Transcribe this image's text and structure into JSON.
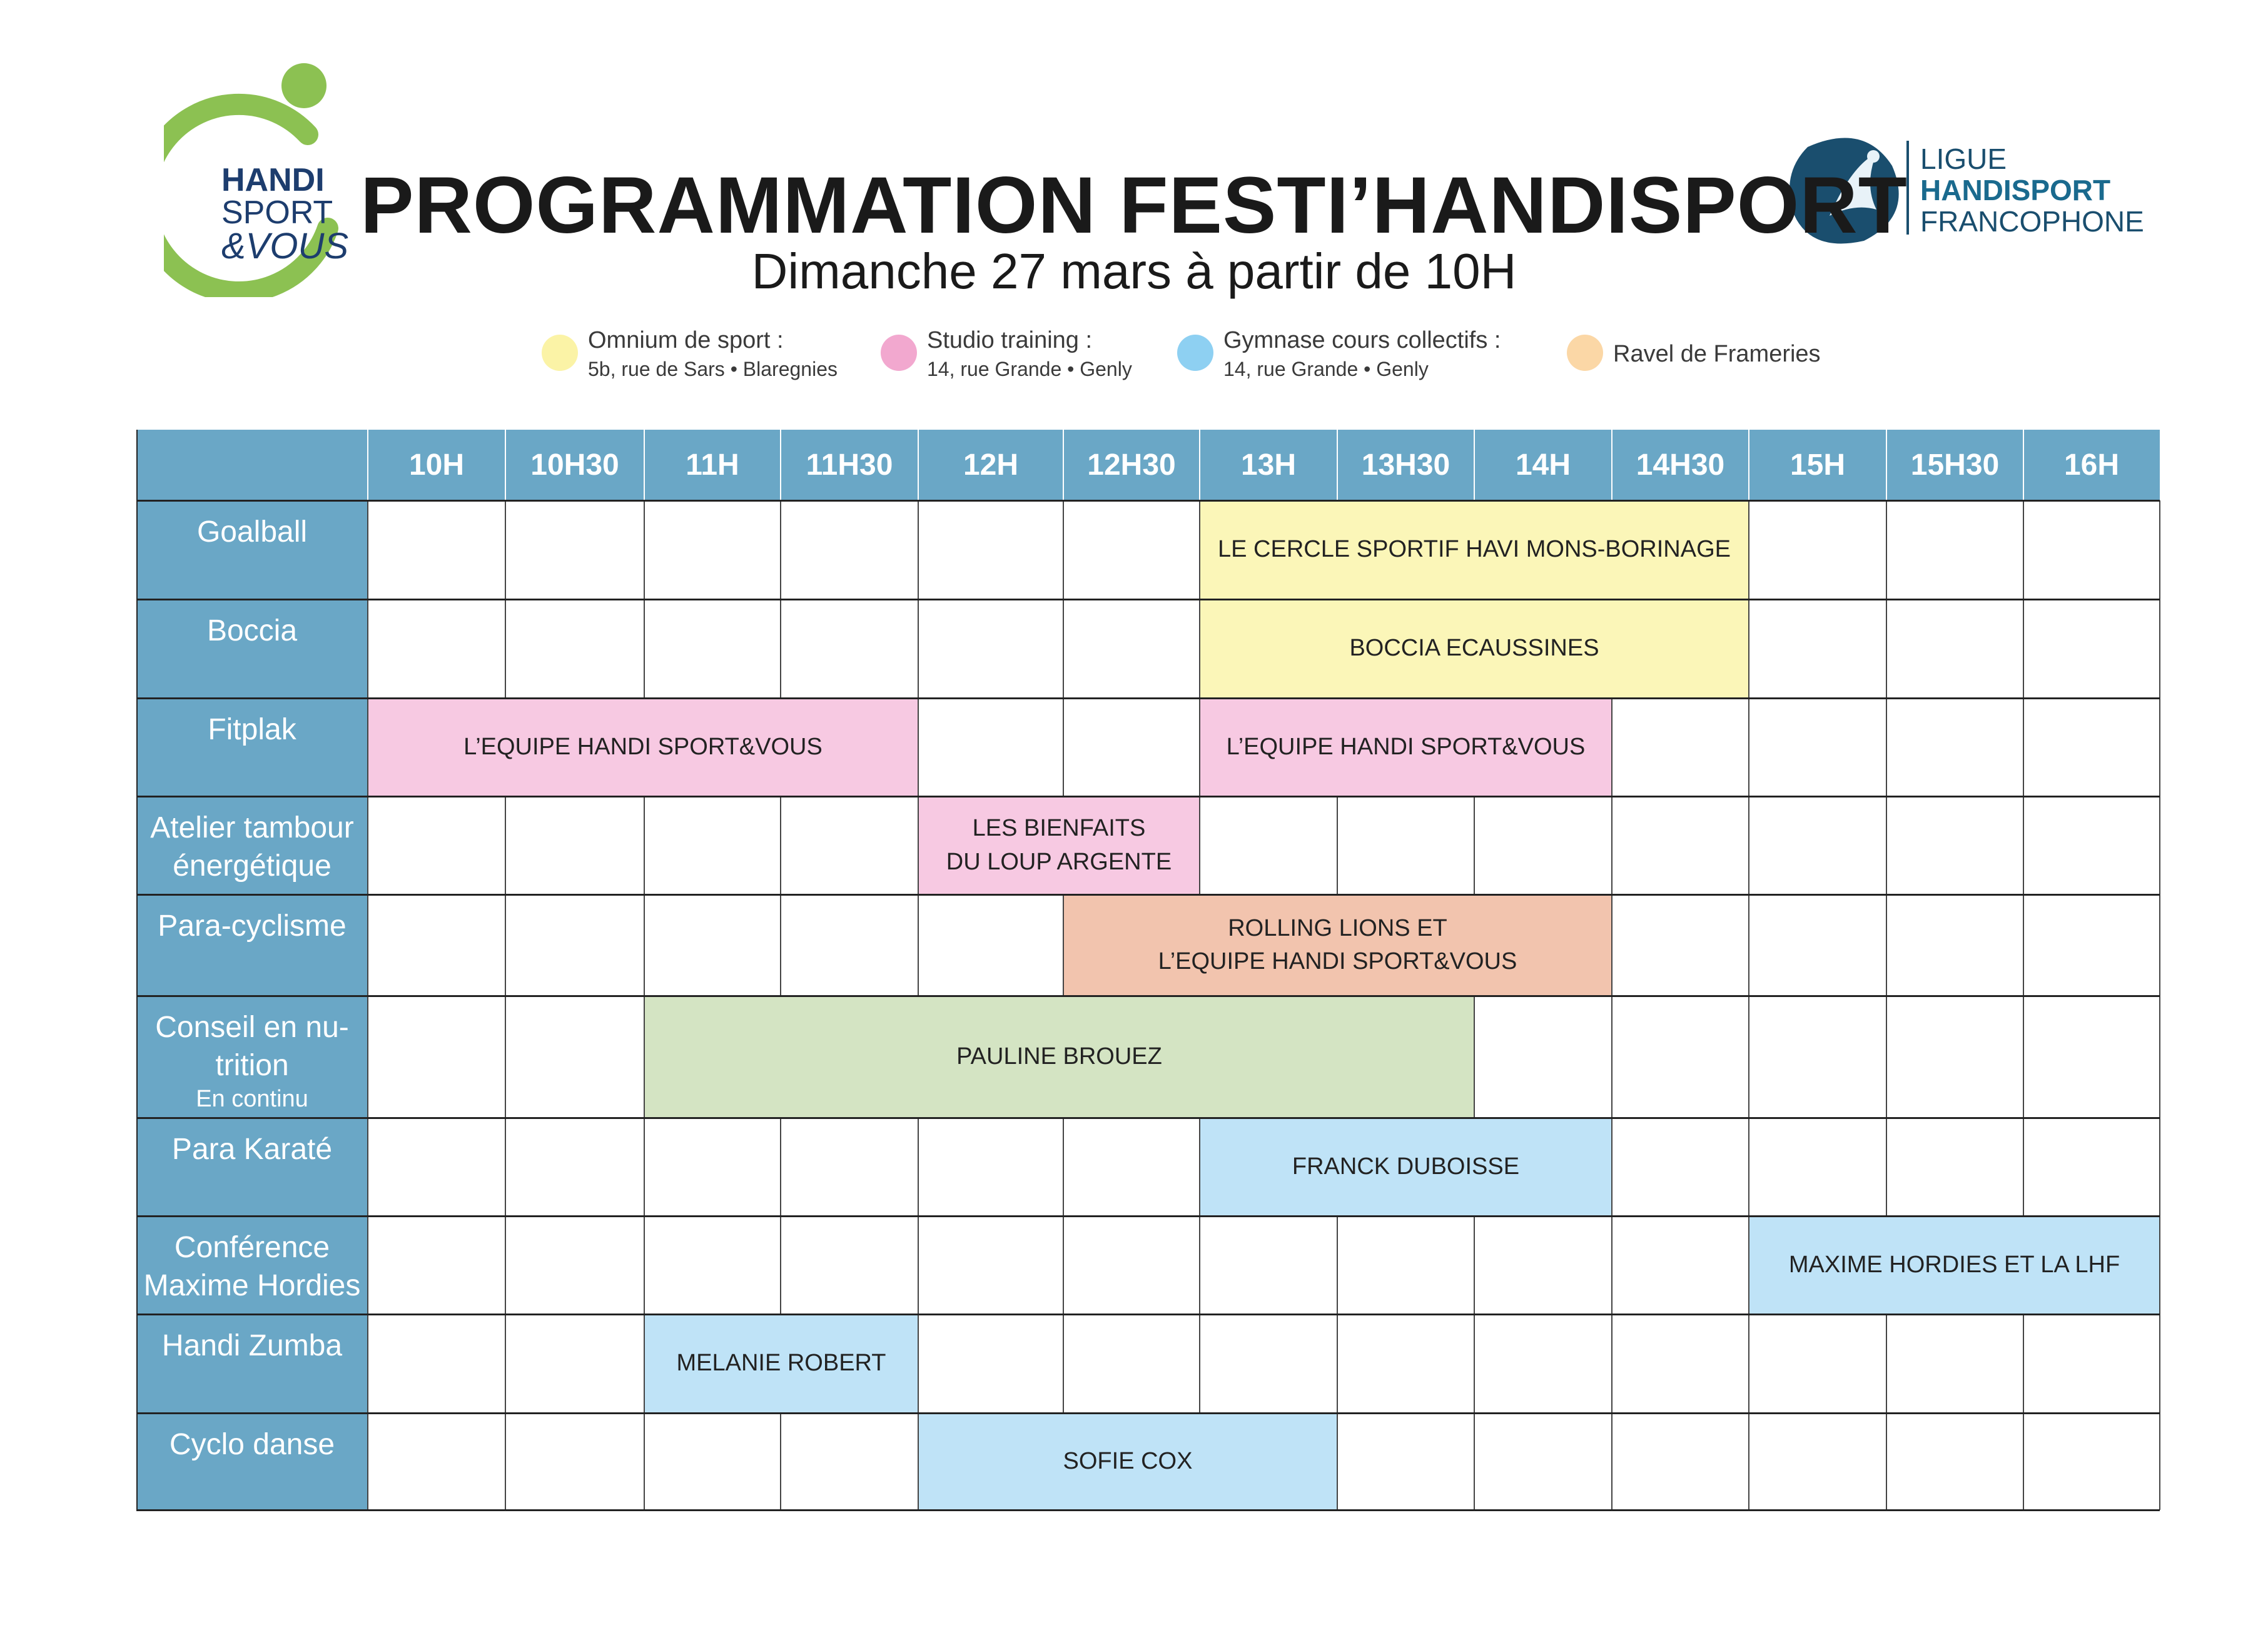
{
  "title": "PROGRAMMATION FESTI’HANDISPORT",
  "subtitle": "Dimanche 27 mars à partir de 10H",
  "logo_left": {
    "line1": "HANDI",
    "line2": "SPORT",
    "line3": "&VOUS"
  },
  "logo_right": {
    "line1": "LIGUE",
    "line2": "HANDISPORT",
    "line3": "FRANCOPHONE"
  },
  "legend": [
    {
      "name": "Omnium de sport :",
      "address": "5b, rue de Sars • Blaregnies",
      "color": "#fbf3a6"
    },
    {
      "name": "Studio training :",
      "address": "14, rue Grande • Genly",
      "color": "#f2a8cf"
    },
    {
      "name": "Gymnase cours collectifs :",
      "address": "14, rue Grande • Genly",
      "color": "#8ed0f2"
    },
    {
      "name": "Ravel de Frameries",
      "address": "",
      "color": "#fbd7a6"
    }
  ],
  "times": [
    "10H",
    "10H30",
    "11H",
    "11H30",
    "12H",
    "12H30",
    "13H",
    "13H30",
    "14H",
    "14H30",
    "15H",
    "15H30",
    "16H"
  ],
  "activities": [
    {
      "label": "Goalball",
      "sub": ""
    },
    {
      "label": "Boccia",
      "sub": ""
    },
    {
      "label": "Fitplak",
      "sub": ""
    },
    {
      "label": "Atelier tambour énergétique",
      "sub": ""
    },
    {
      "label": "Para-cyclisme",
      "sub": ""
    },
    {
      "label": "Conseil en nu-trition",
      "sub": "En continu"
    },
    {
      "label": "Para Karaté",
      "sub": ""
    },
    {
      "label": "Conférence Maxime Hordies",
      "sub": ""
    },
    {
      "label": "Handi Zumba",
      "sub": ""
    },
    {
      "label": "Cyclo danse",
      "sub": ""
    }
  ],
  "sessions": [
    {
      "row": 0,
      "start": "13H",
      "end": "15H",
      "text": "LE CERCLE SPORTIF HAVI MONS-BORINAGE",
      "color": "#fbf6b8"
    },
    {
      "row": 1,
      "start": "13H",
      "end": "15H",
      "text": "BOCCIA ECAUSSINES",
      "color": "#fbf6b8"
    },
    {
      "row": 2,
      "start": "10H",
      "end": "12H",
      "text": "L’EQUIPE HANDI SPORT&VOUS",
      "color": "#f7c9e2"
    },
    {
      "row": 2,
      "start": "13H",
      "end": "14H30",
      "text": "L’EQUIPE HANDI SPORT&VOUS",
      "color": "#f7c9e2"
    },
    {
      "row": 3,
      "start": "12H",
      "end": "13H",
      "text": "LES BIENFAITS\nDU LOUP ARGENTE",
      "color": "#f7c9e2"
    },
    {
      "row": 4,
      "start": "12H30",
      "end": "14H30",
      "text": "ROLLING LIONS ET\nL’EQUIPE HANDI SPORT&VOUS",
      "color": "#f2c4ae"
    },
    {
      "row": 5,
      "start": "11H",
      "end": "14H",
      "text": "PAULINE BROUEZ",
      "color": "#d4e4c3"
    },
    {
      "row": 6,
      "start": "13H",
      "end": "14H30",
      "text": "FRANCK DUBOISSE",
      "color": "#bfe3f7"
    },
    {
      "row": 7,
      "start": "15H",
      "end": "16H30",
      "text": "MAXIME HORDIES ET LA LHF",
      "color": "#bfe3f7"
    },
    {
      "row": 8,
      "start": "11H",
      "end": "12H",
      "text": "MELANIE ROBERT",
      "color": "#bfe3f7"
    },
    {
      "row": 9,
      "start": "12H",
      "end": "13H30",
      "text": "SOFIE COX",
      "color": "#bfe3f7"
    }
  ],
  "colors": {
    "header": "#6aa7c6",
    "grid_line": "#444444"
  }
}
